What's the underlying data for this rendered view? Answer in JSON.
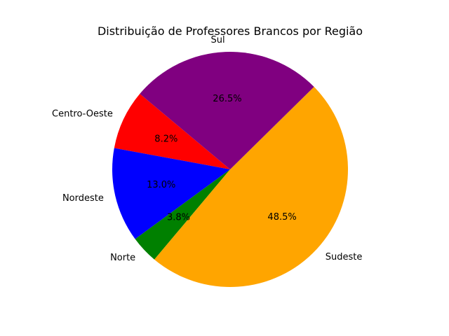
{
  "chart_data": {
    "type": "pie",
    "title": "Distribuição de Professores Brancos por Região",
    "start_angle_deg": 140,
    "direction": "counterclockwise",
    "slices": [
      {
        "label": "Centro-Oeste",
        "value": 8.2,
        "pct_label": "8.2%",
        "color": "#ff0000"
      },
      {
        "label": "Nordeste",
        "value": 13.0,
        "pct_label": "13.0%",
        "color": "#0000ff"
      },
      {
        "label": "Norte",
        "value": 3.8,
        "pct_label": "3.8%",
        "color": "#008000"
      },
      {
        "label": "Sudeste",
        "value": 48.5,
        "pct_label": "48.5%",
        "color": "#ffa500"
      },
      {
        "label": "Sul",
        "value": 26.5,
        "pct_label": "26.5%",
        "color": "#800080"
      }
    ]
  }
}
